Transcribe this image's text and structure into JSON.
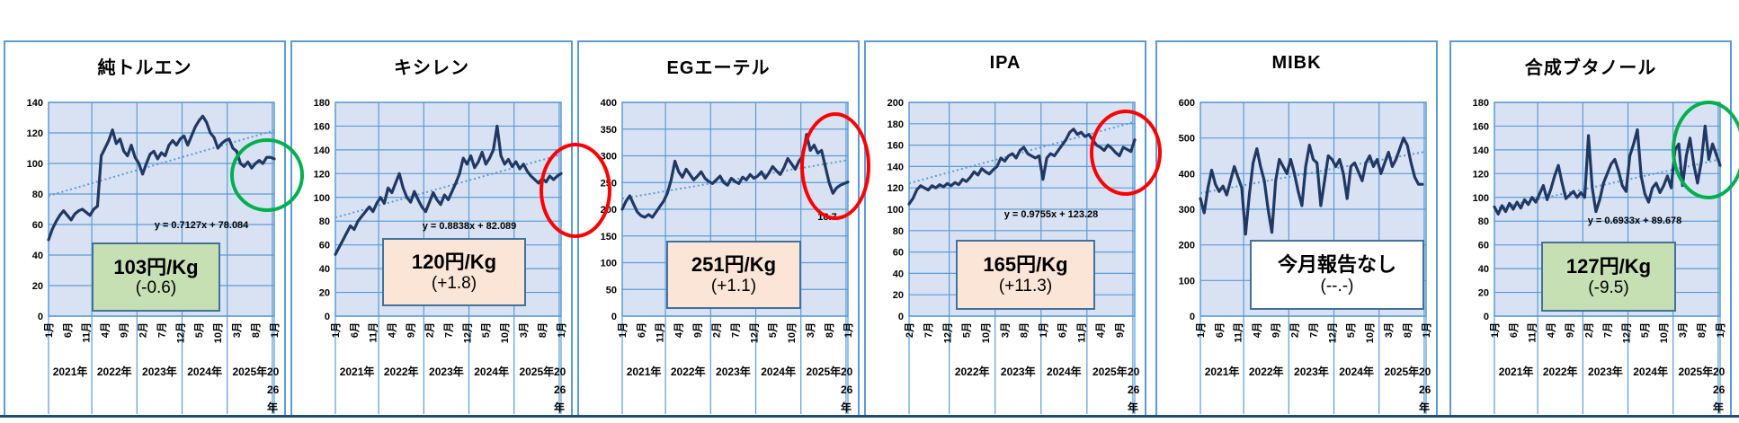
{
  "page": {
    "background": "#FFFFFF"
  },
  "colors": {
    "panel_border": "#5B9BD5",
    "plot_fill": "#D9E2F3",
    "grid": "#5B9BD5",
    "series": "#1F3864",
    "trend": "#5B9BD5",
    "box_border": "#41719C",
    "green_fill": "#C6E0B4",
    "peach_fill": "#FBE5D6",
    "white_fill": "#FFFFFF",
    "green_circle": "#00B050",
    "red_circle": "#FF0000"
  },
  "chart_data": [
    {
      "type": "line",
      "title": "純トルエン",
      "ylim": [
        0,
        140
      ],
      "ystep": 20,
      "x_tick_months": [
        "1月",
        "6月",
        "11月",
        "4月",
        "9月",
        "2月",
        "7月",
        "12月",
        "5月",
        "10月",
        "3月",
        "8月",
        "1月"
      ],
      "x_year_labels": [
        "2021年",
        "2022年",
        "2023年",
        "2024年",
        "2025年"
      ],
      "x_year_wrapped": [
        "20",
        "26",
        "年"
      ],
      "n_categories": 61,
      "values": [
        50,
        57,
        62,
        66,
        69,
        66,
        63,
        67,
        69,
        70,
        68,
        66,
        70,
        72,
        105,
        110,
        115,
        122,
        113,
        116,
        108,
        105,
        112,
        104,
        100,
        93,
        100,
        106,
        108,
        103,
        107,
        105,
        112,
        115,
        112,
        116,
        118,
        112,
        118,
        124,
        128,
        131,
        127,
        120,
        117,
        110,
        113,
        115,
        116,
        110,
        108,
        100,
        98,
        101,
        97,
        100,
        102,
        100,
        104,
        104,
        103
      ],
      "trend": {
        "equation": "y = 0.7127x + 78.084",
        "start": 78.8,
        "end": 121.6
      },
      "price_box": {
        "line1": "103円/Kg",
        "line2": "(-0.6)",
        "fill": "#C6E0B4"
      },
      "highlight_circle": {
        "color": "#00B050"
      }
    },
    {
      "type": "line",
      "title": "キシレン",
      "ylim": [
        0,
        180
      ],
      "ystep": 20,
      "x_tick_months": [
        "1月",
        "6月",
        "11月",
        "4月",
        "9月",
        "2月",
        "7月",
        "12月",
        "5月",
        "10月",
        "3月",
        "8月",
        "1月"
      ],
      "x_year_labels": [
        "2021年",
        "2022年",
        "2023年",
        "2024年",
        "2025年"
      ],
      "x_year_wrapped": [
        "20",
        "26",
        "年"
      ],
      "n_categories": 61,
      "values": [
        52,
        58,
        64,
        70,
        76,
        73,
        80,
        84,
        88,
        92,
        88,
        95,
        100,
        95,
        108,
        104,
        112,
        120,
        108,
        100,
        96,
        105,
        98,
        92,
        88,
        96,
        104,
        98,
        94,
        102,
        98,
        105,
        112,
        120,
        133,
        128,
        135,
        125,
        130,
        138,
        128,
        133,
        140,
        160,
        135,
        128,
        132,
        126,
        130,
        124,
        128,
        122,
        118,
        115,
        112,
        116,
        113,
        118,
        115,
        118,
        120
      ],
      "trend": {
        "equation": "y = 0.8838x + 82.089",
        "start": 83.0,
        "end": 136.0
      },
      "price_box": {
        "line1": "120円/Kg",
        "line2": "(+1.8)",
        "fill": "#FBE5D6"
      },
      "highlight_circle": {
        "color": "#FF0000"
      }
    },
    {
      "type": "line",
      "title": "EGエーテル",
      "ylim": [
        0,
        400
      ],
      "ystep": 50,
      "x_tick_months": [
        "1月",
        "6月",
        "11月",
        "4月",
        "9月",
        "2月",
        "7月",
        "12月",
        "5月",
        "10月",
        "3月",
        "8月",
        "1月"
      ],
      "x_year_labels": [
        "2021年",
        "2022年",
        "2023年",
        "2024年",
        "2025年"
      ],
      "x_year_wrapped": [
        "20",
        "26",
        "年"
      ],
      "n_categories": 61,
      "values": [
        200,
        215,
        225,
        210,
        195,
        188,
        185,
        190,
        185,
        195,
        205,
        215,
        230,
        255,
        290,
        270,
        260,
        275,
        265,
        255,
        262,
        270,
        258,
        252,
        248,
        255,
        262,
        250,
        245,
        258,
        252,
        248,
        260,
        255,
        265,
        258,
        262,
        270,
        258,
        268,
        280,
        272,
        265,
        278,
        295,
        285,
        275,
        290,
        300,
        340,
        310,
        320,
        305,
        310,
        280,
        250,
        230,
        240,
        245,
        248,
        251
      ],
      "trend": {
        "equation": "18.7",
        "start": 220,
        "end": 292
      },
      "price_box": {
        "line1": "251円/Kg",
        "line2": "(+1.1)",
        "fill": "#FBE5D6"
      },
      "highlight_circle": {
        "color": "#FF0000"
      }
    },
    {
      "type": "line",
      "title": "IPA",
      "ylim": [
        0,
        200
      ],
      "ystep": 20,
      "x_tick_months": [
        "2月",
        "7月",
        "12月",
        "5月",
        "10月",
        "3月",
        "8月",
        "1月",
        "6月",
        "11月",
        "4月",
        "9月"
      ],
      "x_year_labels": [
        "",
        "2022年",
        "2023年",
        "2024年",
        "2025年"
      ],
      "x_year_wrapped": [
        "20",
        "26",
        "年"
      ],
      "n_categories": 60,
      "values": [
        105,
        110,
        118,
        122,
        120,
        118,
        122,
        120,
        123,
        121,
        124,
        122,
        125,
        123,
        128,
        126,
        130,
        135,
        132,
        138,
        135,
        133,
        137,
        140,
        148,
        145,
        150,
        152,
        148,
        155,
        158,
        152,
        150,
        148,
        150,
        128,
        148,
        152,
        150,
        155,
        160,
        165,
        172,
        175,
        170,
        172,
        168,
        170,
        165,
        160,
        158,
        155,
        160,
        157,
        153,
        150,
        158,
        156,
        154,
        165
      ],
      "trend": {
        "equation": "y = 0.9755x + 123.28",
        "start": 124.3,
        "end": 181.8
      },
      "price_box": {
        "line1": "165円/Kg",
        "line2": "(+11.3)",
        "fill": "#FBE5D6"
      },
      "highlight_circle": {
        "color": "#FF0000"
      }
    },
    {
      "type": "line",
      "title": "MIBK",
      "ylim": [
        0,
        600
      ],
      "ystep": 100,
      "x_tick_months": [
        "1月",
        "6月",
        "11月",
        "4月",
        "9月",
        "2月",
        "7月",
        "12月",
        "5月",
        "10月",
        "3月",
        "8月",
        "1月"
      ],
      "x_year_labels": [
        "2021年",
        "2022年",
        "2023年",
        "2024年",
        "2025年"
      ],
      "x_year_wrapped": [
        "20",
        "26",
        "年"
      ],
      "n_categories": 61,
      "values": [
        330,
        290,
        360,
        410,
        370,
        350,
        365,
        340,
        380,
        420,
        390,
        360,
        230,
        340,
        430,
        470,
        420,
        380,
        300,
        235,
        380,
        440,
        420,
        400,
        440,
        400,
        350,
        310,
        420,
        480,
        440,
        430,
        310,
        380,
        450,
        440,
        420,
        440,
        400,
        330,
        420,
        430,
        405,
        380,
        430,
        450,
        420,
        440,
        400,
        430,
        460,
        420,
        440,
        470,
        500,
        480,
        430,
        390,
        370,
        370
      ],
      "trend": {
        "equation": "",
        "start": 345,
        "end": 462
      },
      "price_box": {
        "line1": "今月報告なし",
        "line2": "(--.-)",
        "fill": "#FFFFFF"
      },
      "highlight_circle": null
    },
    {
      "type": "line",
      "title": "合成ブタノール",
      "ylim": [
        0,
        180
      ],
      "ystep": 20,
      "x_tick_months": [
        "1月",
        "6月",
        "11月",
        "4月",
        "9月",
        "2月",
        "7月",
        "12月",
        "5月",
        "10月",
        "3月",
        "8月",
        "1月"
      ],
      "x_year_labels": [
        "2021年",
        "2022年",
        "2023年",
        "2024年",
        "2025年"
      ],
      "x_year_wrapped": [
        "20",
        "26",
        "年"
      ],
      "n_categories": 61,
      "values": [
        92,
        86,
        93,
        88,
        95,
        90,
        96,
        91,
        98,
        94,
        100,
        96,
        103,
        110,
        98,
        107,
        118,
        127,
        112,
        99,
        102,
        105,
        100,
        104,
        100,
        152,
        108,
        88,
        98,
        112,
        120,
        128,
        132,
        122,
        110,
        105,
        135,
        145,
        157,
        118,
        103,
        96,
        108,
        112,
        104,
        110,
        118,
        108,
        140,
        145,
        110,
        135,
        150,
        128,
        112,
        130,
        160,
        132,
        145,
        136,
        127
      ],
      "trend": {
        "equation": "y = 0.6933x + 89.678",
        "start": 90.4,
        "end": 132.0
      },
      "price_box": {
        "line1": "127円/Kg",
        "line2": "(-9.5)",
        "fill": "#C6E0B4"
      },
      "highlight_circle": {
        "color": "#00B050"
      }
    }
  ]
}
